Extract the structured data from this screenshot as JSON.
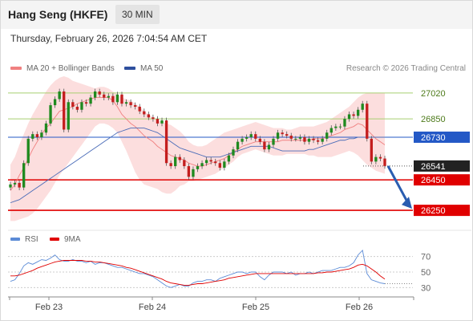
{
  "header": {
    "title": "Hang Seng (HKFE)",
    "timeframe": "30 MIN",
    "datetime": "Thursday, February 26, 2026 7:04:54 AM CET"
  },
  "legend": {
    "ma20_bollinger": "MA 20 + Bollinger Bands",
    "ma50": "MA 50",
    "credit": "Research © 2026 Trading Central"
  },
  "colors": {
    "candle_up": "#1f8a1f",
    "candle_down": "#c41e1e",
    "bollinger_fill": "#fbd8d8",
    "ma20": "#f08080",
    "ma50": "#4a6cb8",
    "resistance": "#a8cf70",
    "pivot": "#2358c6",
    "support": "#e00000",
    "last_price": "#222222",
    "forecast_arrow": "#2a5db0",
    "rsi": "#5b8bd6",
    "rsi_ma": "#e00000"
  },
  "chart_data": [
    {
      "type": "candlestick",
      "title": "Hang Seng (HKFE) 30 MIN",
      "x_labels": [
        "Feb 23",
        "Feb 24",
        "Feb 25",
        "Feb 26"
      ],
      "ylim": [
        26140,
        27130
      ],
      "levels": [
        {
          "name": "resistance_2",
          "value": 27020,
          "label": "27020",
          "kind": "resistance"
        },
        {
          "name": "resistance_1",
          "value": 26850,
          "label": "26850",
          "kind": "resistance"
        },
        {
          "name": "pivot",
          "value": 26730,
          "label": "26730",
          "kind": "pivot"
        },
        {
          "name": "last",
          "value": 26541,
          "label": "26541",
          "kind": "last"
        },
        {
          "name": "support_1",
          "value": 26450,
          "label": "26450",
          "kind": "support"
        },
        {
          "name": "support_2",
          "value": 26250,
          "label": "26250",
          "kind": "support"
        }
      ],
      "forecast_arrow": {
        "from": 26541,
        "to": 26250
      },
      "close": [
        26420,
        26430,
        26400,
        26560,
        26720,
        26750,
        26730,
        26760,
        26820,
        26940,
        26980,
        27030,
        26780,
        26960,
        26930,
        26910,
        26960,
        26950,
        26990,
        27030,
        27010,
        26990,
        27000,
        26960,
        27010,
        26950,
        26960,
        26940,
        26930,
        26900,
        26880,
        26860,
        26850,
        26820,
        26840,
        26560,
        26540,
        26600,
        26580,
        26540,
        26470,
        26520,
        26540,
        26560,
        26580,
        26570,
        26560,
        26530,
        26570,
        26610,
        26650,
        26700,
        26720,
        26730,
        26750,
        26720,
        26700,
        26650,
        26680,
        26720,
        26760,
        26750,
        26740,
        26720,
        26720,
        26730,
        26700,
        26720,
        26710,
        26700,
        26720,
        26760,
        26790,
        26800,
        26800,
        26850,
        26880,
        26870,
        26910,
        26950,
        26720,
        26570,
        26600,
        26590,
        26541
      ],
      "ma20": [
        26380,
        26420,
        26480,
        26530,
        26590,
        26650,
        26700,
        26750,
        26790,
        26820,
        26860,
        26900,
        26910,
        26920,
        26930,
        26950,
        26960,
        26970,
        26980,
        26990,
        26990,
        26990,
        26990,
        26970,
        26930,
        26880,
        26850,
        26820,
        26800,
        26770,
        26740,
        26720,
        26700,
        26670,
        26650,
        26630,
        26610,
        26600,
        26590,
        26580,
        26560,
        26550,
        26540,
        26540,
        26550,
        26560,
        26570,
        26580,
        26590,
        26610,
        26630,
        26650,
        26670,
        26680,
        26690,
        26700,
        26700,
        26700,
        26700,
        26700,
        26700,
        26710,
        26710,
        26710,
        26710,
        26710,
        26710,
        26710,
        26720,
        26720,
        26720,
        26730,
        26740,
        26750,
        26760,
        26780,
        26790,
        26800,
        26820,
        26810,
        26780,
        26750,
        26720,
        26700,
        26680
      ],
      "ma50": [
        26300,
        26310,
        26320,
        26340,
        26360,
        26380,
        26400,
        26420,
        26440,
        26460,
        26480,
        26500,
        26520,
        26540,
        26560,
        26580,
        26600,
        26620,
        26640,
        26660,
        26680,
        26700,
        26720,
        26740,
        26760,
        26770,
        26780,
        26790,
        26790,
        26790,
        26790,
        26780,
        26770,
        26760,
        26740,
        26720,
        26700,
        26680,
        26660,
        26650,
        26640,
        26630,
        26620,
        26610,
        26600,
        26600,
        26600,
        26600,
        26610,
        26620,
        26630,
        26640,
        26650,
        26660,
        26670,
        26670,
        26670,
        26670,
        26670,
        26660,
        26650,
        26640,
        26640,
        26640,
        26640,
        26640,
        26640,
        26650,
        26650,
        26660,
        26670,
        26680,
        26690,
        26700,
        26710,
        26710,
        26720,
        26720,
        26730,
        26730,
        26730,
        26730,
        26730,
        26730,
        26730
      ],
      "bb_upper": [
        26550,
        26600,
        26680,
        26750,
        26820,
        26880,
        26930,
        26980,
        27030,
        27070,
        27100,
        27120,
        27130,
        27120,
        27100,
        27090,
        27080,
        27070,
        27060,
        27050,
        27060,
        27060,
        27050,
        27030,
        27010,
        26990,
        26980,
        26970,
        26950,
        26930,
        26900,
        26880,
        26860,
        26840,
        26830,
        26820,
        26810,
        26790,
        26770,
        26740,
        26700,
        26680,
        26670,
        26670,
        26680,
        26700,
        26720,
        26740,
        26760,
        26770,
        26780,
        26790,
        26800,
        26810,
        26820,
        26830,
        26820,
        26810,
        26800,
        26790,
        26790,
        26790,
        26780,
        26780,
        26790,
        26800,
        26800,
        26800,
        26800,
        26810,
        26820,
        26830,
        26850,
        26870,
        26890,
        26910,
        26930,
        26960,
        26990,
        27010,
        27020,
        27020,
        27020,
        27020,
        27020
      ],
      "bb_lower": [
        26180,
        26180,
        26190,
        26200,
        26210,
        26230,
        26260,
        26300,
        26340,
        26380,
        26430,
        26480,
        26520,
        26560,
        26600,
        26640,
        26680,
        26720,
        26760,
        26800,
        26820,
        26820,
        26810,
        26790,
        26760,
        26700,
        26640,
        26570,
        26500,
        26450,
        26420,
        26410,
        26400,
        26390,
        26370,
        26360,
        26360,
        26380,
        26410,
        26420,
        26440,
        26440,
        26450,
        26460,
        26470,
        26480,
        26490,
        26510,
        26530,
        26550,
        26570,
        26600,
        26620,
        26630,
        26640,
        26650,
        26640,
        26630,
        26620,
        26610,
        26610,
        26610,
        26620,
        26620,
        26620,
        26620,
        26620,
        26610,
        26610,
        26600,
        26600,
        26600,
        26600,
        26610,
        26620,
        26630,
        26640,
        26630,
        26610,
        26580,
        26550,
        26530,
        26510,
        26500,
        26490
      ]
    },
    {
      "type": "line",
      "title": "RSI",
      "series": [
        {
          "name": "RSI",
          "values": [
            38,
            40,
            48,
            58,
            62,
            60,
            63,
            66,
            65,
            68,
            72,
            66,
            64,
            64,
            66,
            64,
            64,
            62,
            64,
            60,
            62,
            62,
            60,
            58,
            56,
            56,
            54,
            52,
            50,
            48,
            48,
            46,
            44,
            40,
            36,
            32,
            30,
            32,
            34,
            32,
            32,
            36,
            38,
            38,
            40,
            40,
            38,
            42,
            44,
            46,
            48,
            50,
            50,
            48,
            50,
            50,
            44,
            40,
            46,
            50,
            50,
            50,
            48,
            50,
            46,
            48,
            48,
            50,
            48,
            50,
            52,
            52,
            52,
            54,
            56,
            56,
            58,
            62,
            72,
            78,
            48,
            40,
            38,
            36,
            35
          ]
        },
        {
          "name": "9MA",
          "values": [
            45,
            45,
            46,
            48,
            50,
            52,
            55,
            57,
            59,
            61,
            63,
            64,
            65,
            65,
            65,
            65,
            65,
            64,
            64,
            63,
            63,
            62,
            61,
            60,
            59,
            58,
            56,
            55,
            53,
            51,
            49,
            47,
            45,
            43,
            41,
            38,
            36,
            35,
            34,
            33,
            33,
            34,
            35,
            35,
            36,
            37,
            38,
            39,
            40,
            42,
            43,
            44,
            45,
            46,
            47,
            48,
            48,
            48,
            48,
            48,
            48,
            48,
            48,
            48,
            48,
            48,
            48,
            48,
            48,
            49,
            49,
            50,
            50,
            51,
            52,
            53,
            54,
            56,
            59,
            60,
            58,
            54,
            50,
            45,
            41
          ]
        }
      ],
      "legend": [
        "RSI",
        "9MA"
      ],
      "y_ticks": [
        70,
        50,
        30
      ],
      "ylim": [
        20,
        80
      ]
    }
  ]
}
